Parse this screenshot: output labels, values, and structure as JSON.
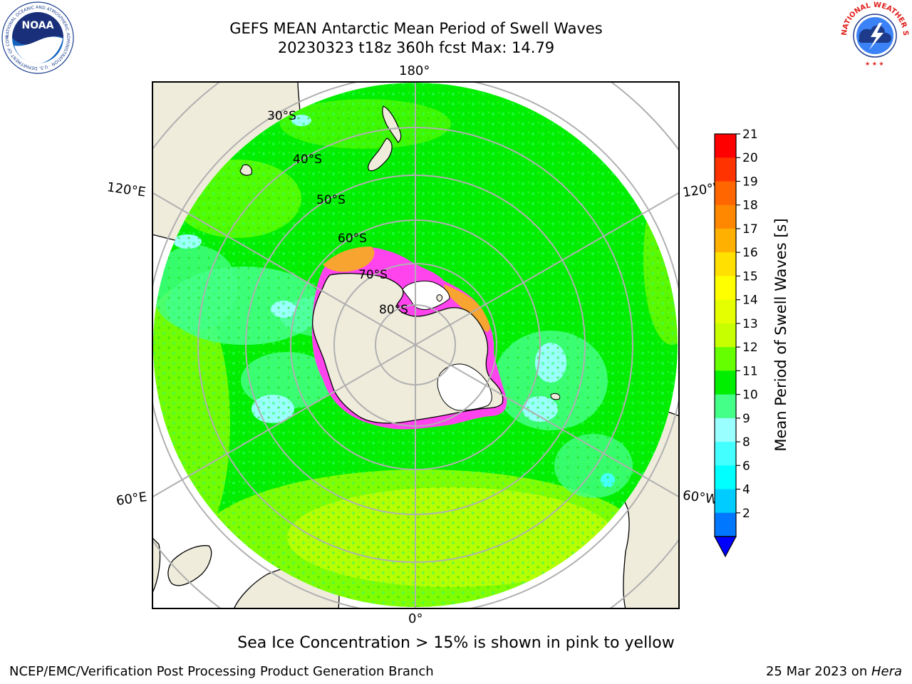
{
  "title": {
    "line1": "GEFS MEAN Antarctic Mean Period of Swell Waves",
    "line2": "20230323 t18z 360h fcst   Max: 14.79"
  },
  "logos": {
    "noaa_text": "NOAA",
    "noaa_ring": "NATIONAL OCEANIC AND ATMOSPHERIC ADMINISTRATION · U.S. DEPARTMENT OF COMMERCE",
    "nws_ring": "NATIONAL WEATHER SERVICE"
  },
  "map": {
    "projection": "south-polar-stereographic",
    "longitude_labels": [
      "180°",
      "120°E",
      "120°W",
      "60°E",
      "60°W",
      "0°"
    ],
    "latitude_labels": [
      "30°S",
      "40°S",
      "50°S",
      "60°S",
      "70°S",
      "80°S"
    ],
    "dominant_field": "10-11 s (green) over most of the Southern Ocean, 12-13 s (yellow-green) toward 0°, 8-9 s (cyan) patches near the ice edge",
    "land_color": "#efecdc",
    "sea_ice_colors": [
      "#ff44ee",
      "#f7a530",
      "#ffff66"
    ]
  },
  "colorbar": {
    "label": "Mean Period of Swell Waves [s]",
    "ticks": [
      "21",
      "20",
      "19",
      "18",
      "17",
      "16",
      "15",
      "14",
      "13",
      "12",
      "11",
      "10",
      "9",
      "8",
      "6",
      "4",
      "2"
    ],
    "colors_top_to_bottom": [
      "#ff0000",
      "#ff3300",
      "#ff6600",
      "#ff8800",
      "#ffb000",
      "#ffe000",
      "#ffff00",
      "#e6ff00",
      "#c8ff00",
      "#66ff00",
      "#00ee00",
      "#44ff88",
      "#99ffff",
      "#44ffff",
      "#00ffff",
      "#00ccff",
      "#0077ff"
    ],
    "extend_color": "#0000ff"
  },
  "note": "Sea Ice Concentration > 15% is shown in pink to yellow",
  "footer": {
    "left": "NCEP/EMC/Verification Post Processing Product Generation Branch",
    "right_prefix": "25 Mar 2023 on ",
    "right_host": "Hera"
  }
}
